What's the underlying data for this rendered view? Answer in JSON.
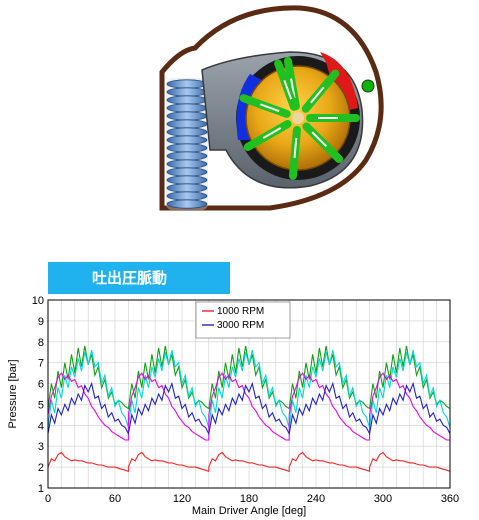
{
  "banner": {
    "label": "吐出圧脈動"
  },
  "illustration": {
    "name": "vane-pump-cross-section"
  },
  "chart_data": {
    "type": "line",
    "title": "",
    "xlabel": "Main Driver Angle [deg]",
    "ylabel": "Pressure [bar]",
    "xlim": [
      0,
      360
    ],
    "ylim": [
      1,
      10
    ],
    "xticks": [
      0,
      60,
      120,
      180,
      240,
      300,
      360
    ],
    "yticks": [
      1,
      2,
      3,
      4,
      5,
      6,
      7,
      8,
      9,
      10
    ],
    "grid": true,
    "legend_position": "top-center",
    "period_deg": 72,
    "series": [
      {
        "name": "1000 RPM",
        "color": "#ff2020",
        "legend": true,
        "x": [
          0,
          3,
          6,
          9,
          12,
          15,
          18,
          21,
          24,
          27,
          30,
          33,
          36,
          39,
          42,
          45,
          48,
          51,
          54,
          57,
          60,
          63,
          66,
          69,
          72
        ],
        "y": [
          2.0,
          2.4,
          2.3,
          2.6,
          2.7,
          2.5,
          2.4,
          2.3,
          2.35,
          2.3,
          2.3,
          2.25,
          2.2,
          2.2,
          2.15,
          2.1,
          2.1,
          2.05,
          2.0,
          2.0,
          2.0,
          1.95,
          1.9,
          1.85,
          1.8
        ]
      },
      {
        "name": "3000 RPM",
        "color": "#2020d0",
        "legend": true,
        "x": [
          0,
          3,
          6,
          9,
          12,
          15,
          18,
          21,
          24,
          27,
          30,
          33,
          36,
          39,
          42,
          45,
          48,
          51,
          54,
          57,
          60,
          63,
          66,
          69,
          72
        ],
        "y": [
          3.6,
          4.5,
          4.1,
          4.8,
          4.5,
          5.0,
          4.7,
          5.3,
          5.0,
          5.5,
          5.2,
          5.9,
          5.6,
          6.0,
          5.3,
          5.4,
          4.8,
          5.0,
          4.4,
          4.6,
          4.2,
          4.3,
          4.0,
          3.9,
          3.6
        ]
      },
      {
        "name": "",
        "color": "#ee00ee",
        "legend": false,
        "x": [
          0,
          3,
          6,
          9,
          12,
          15,
          18,
          21,
          24,
          27,
          30,
          33,
          36,
          39,
          42,
          45,
          48,
          51,
          54,
          57,
          60,
          63,
          66,
          69,
          72
        ],
        "y": [
          4.5,
          5.4,
          5.8,
          6.3,
          6.5,
          6.2,
          6.4,
          6.1,
          6.2,
          5.8,
          5.9,
          5.5,
          5.3,
          4.9,
          4.7,
          4.4,
          4.2,
          4.0,
          3.9,
          3.7,
          3.6,
          3.5,
          3.4,
          3.3,
          3.3
        ]
      },
      {
        "name": "",
        "color": "#00d8d8",
        "legend": false,
        "x": [
          0,
          3,
          6,
          9,
          12,
          15,
          18,
          21,
          24,
          27,
          30,
          33,
          36,
          39,
          42,
          45,
          48,
          51,
          54,
          57,
          60,
          63,
          66,
          69,
          72
        ],
        "y": [
          3.9,
          5.2,
          4.6,
          5.8,
          5.3,
          6.4,
          5.8,
          6.8,
          6.3,
          7.2,
          6.6,
          7.5,
          6.9,
          7.6,
          6.8,
          7.0,
          6.0,
          6.4,
          5.4,
          5.8,
          4.9,
          5.2,
          4.6,
          4.4,
          3.9
        ]
      },
      {
        "name": "",
        "color": "#10a010",
        "legend": false,
        "x": [
          0,
          3,
          6,
          9,
          12,
          15,
          18,
          21,
          24,
          27,
          30,
          33,
          36,
          39,
          42,
          45,
          48,
          51,
          54,
          57,
          60,
          63,
          66,
          69,
          72
        ],
        "y": [
          4.8,
          6.0,
          5.3,
          6.6,
          5.8,
          7.0,
          6.2,
          7.4,
          6.5,
          7.7,
          6.8,
          7.8,
          6.9,
          7.4,
          6.4,
          6.8,
          5.8,
          6.2,
          5.3,
          5.6,
          5.0,
          5.2,
          5.1,
          4.9,
          4.8
        ]
      }
    ]
  }
}
